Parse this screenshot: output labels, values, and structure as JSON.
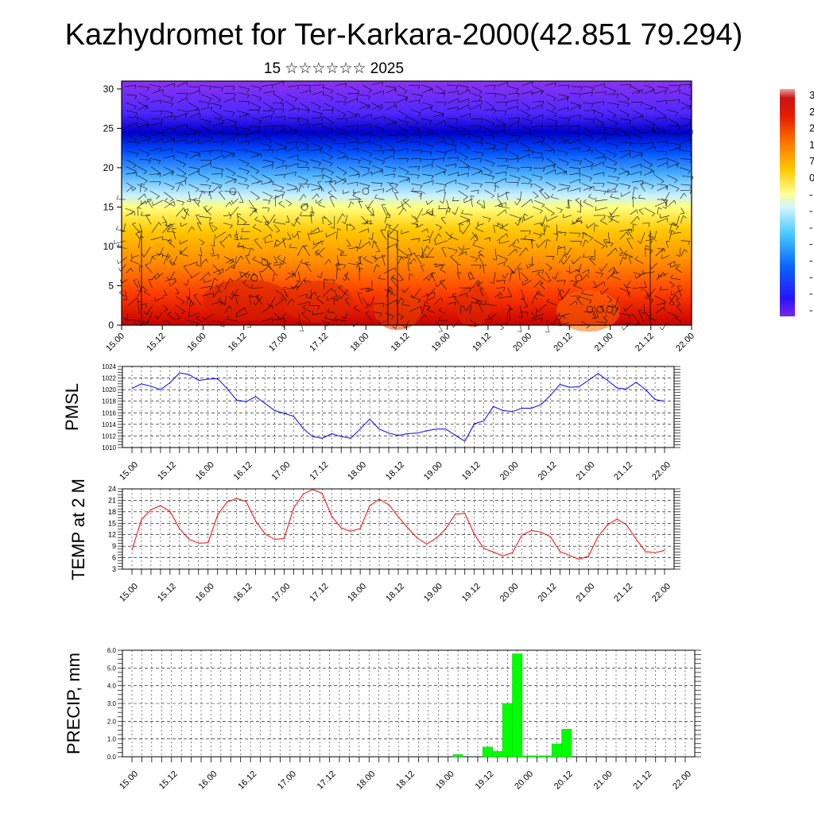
{
  "title": "Kazhydromet for Ter-Karkara-2000(42.851 79.294)",
  "subtitle": "15 ☆☆☆☆☆☆ 2025",
  "time_labels": [
    "15.00",
    "15.12",
    "16.00",
    "16.12",
    "17.00",
    "17.12",
    "18.00",
    "18.12",
    "19.00",
    "19.12",
    "20.00",
    "20.12",
    "21.00",
    "21.12",
    "22.00"
  ],
  "colors": {
    "pmsl_line": "#0000ff",
    "temp_line": "#ff0000",
    "precip_bar": "#00ff00",
    "grid": "#000000"
  },
  "chart_data": [
    {
      "type": "heatmap",
      "name_hint": "vertical cross-section with wind barbs",
      "xlabel": "",
      "ylabel": "",
      "x_ticks": [
        "15.00",
        "15.12",
        "16.00",
        "16.12",
        "17.00",
        "17.12",
        "18.00",
        "18.12",
        "19.00",
        "19.12",
        "20.00",
        "20.12",
        "21.00",
        "21.12",
        "22.00"
      ],
      "y_ticks": [
        0,
        5,
        10,
        15,
        20,
        25,
        30
      ],
      "ylim": [
        0,
        31
      ],
      "colorbar": {
        "visible_labels": [
          "3",
          "2",
          "2",
          "1",
          "7",
          "0",
          "-",
          "-",
          "-",
          "-",
          "-",
          "-",
          "-",
          "-"
        ]
      },
      "color_levels": [
        {
          "y": 0,
          "color": "#c80000"
        },
        {
          "y": 4,
          "color": "#ff3c00"
        },
        {
          "y": 8,
          "color": "#ff8c00"
        },
        {
          "y": 12,
          "color": "#ffc800"
        },
        {
          "y": 15,
          "color": "#ffff80"
        },
        {
          "y": 16.5,
          "color": "#c8f0ff"
        },
        {
          "y": 19,
          "color": "#50b4ff"
        },
        {
          "y": 22,
          "color": "#0050ff"
        },
        {
          "y": 24.5,
          "color": "#0000c8"
        },
        {
          "y": 27,
          "color": "#5028ff"
        },
        {
          "y": 31,
          "color": "#8c32f0"
        }
      ]
    },
    {
      "type": "line",
      "ylabel": "PMSL",
      "ylim": [
        1010,
        1024
      ],
      "y_ticks": [
        1010,
        1012,
        1014,
        1016,
        1018,
        1020,
        1022,
        1024
      ],
      "x_ticks": [
        "15.00",
        "15.12",
        "16.00",
        "16.12",
        "17.00",
        "17.12",
        "18.00",
        "18.12",
        "19.00",
        "19.12",
        "20.00",
        "20.12",
        "21.00",
        "21.12",
        "22.00"
      ],
      "x_step_hours": 3,
      "values": [
        1020.2,
        1021.0,
        1020.6,
        1020.0,
        1021.2,
        1022.9,
        1022.6,
        1021.6,
        1021.8,
        1021.9,
        1020.2,
        1018.2,
        1017.9,
        1018.8,
        1017.6,
        1016.4,
        1015.9,
        1015.4,
        1013.3,
        1011.9,
        1011.6,
        1012.4,
        1011.9,
        1011.6,
        1013.2,
        1014.9,
        1013.2,
        1012.5,
        1012.1,
        1012.4,
        1012.5,
        1012.9,
        1013.2,
        1013.2,
        1012.1,
        1011.1,
        1014.1,
        1014.6,
        1017.1,
        1016.4,
        1016.2,
        1016.8,
        1016.8,
        1017.4,
        1019.0,
        1020.9,
        1020.4,
        1020.5,
        1021.6,
        1022.8,
        1021.6,
        1020.3,
        1020.1,
        1021.3,
        1020.0,
        1018.3,
        1018.0
      ]
    },
    {
      "type": "line",
      "ylabel": "TEMP at 2 M",
      "ylim": [
        3,
        24
      ],
      "y_ticks": [
        3,
        6,
        9,
        12,
        15,
        18,
        21,
        24
      ],
      "x_ticks": [
        "15.00",
        "15.12",
        "16.00",
        "16.12",
        "17.00",
        "17.12",
        "18.00",
        "18.12",
        "19.00",
        "19.12",
        "20.00",
        "20.12",
        "21.00",
        "21.12",
        "22.00"
      ],
      "x_step_hours": 3,
      "values": [
        8.0,
        16.0,
        18.6,
        19.6,
        18.1,
        13.6,
        10.8,
        9.8,
        9.9,
        17.1,
        20.6,
        21.5,
        20.7,
        15.6,
        12.2,
        10.8,
        11.0,
        19.0,
        22.6,
        23.9,
        22.8,
        16.8,
        13.8,
        12.9,
        13.6,
        19.6,
        21.3,
        19.9,
        16.7,
        13.8,
        11.1,
        9.6,
        11.1,
        13.6,
        17.4,
        17.6,
        12.1,
        8.4,
        7.5,
        6.5,
        7.3,
        11.9,
        13.1,
        12.7,
        11.5,
        7.6,
        6.6,
        5.6,
        6.4,
        11.5,
        14.6,
        16.1,
        14.6,
        10.9,
        7.6,
        7.3,
        7.9
      ]
    },
    {
      "type": "bar",
      "ylabel": "PRECIP, mm",
      "ylim": [
        0,
        6
      ],
      "y_ticks": [
        "0.0",
        "1.0",
        "2.0",
        "3.0",
        "4.0",
        "5.0",
        "6.0"
      ],
      "x_ticks": [
        "15.00",
        "15.12",
        "16.00",
        "16.12",
        "17.00",
        "17.12",
        "18.00",
        "18.12",
        "19.00",
        "19.12",
        "20.00",
        "20.12",
        "21.00",
        "21.12",
        "22.00"
      ],
      "x_step_hours": 3,
      "values": [
        0,
        0,
        0,
        0,
        0,
        0,
        0,
        0,
        0,
        0,
        0,
        0,
        0,
        0,
        0,
        0,
        0,
        0,
        0,
        0,
        0,
        0,
        0,
        0,
        0,
        0,
        0,
        0,
        0,
        0,
        0,
        0,
        0,
        0.12,
        0,
        0,
        0.55,
        0.3,
        3.0,
        5.8,
        0.05,
        0.05,
        0.05,
        0.72,
        1.55,
        0,
        0,
        0,
        0,
        0,
        0,
        0,
        0,
        0,
        0,
        0,
        0
      ]
    }
  ]
}
